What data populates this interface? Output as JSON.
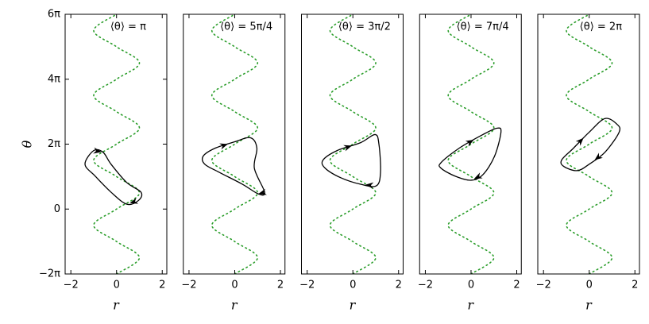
{
  "chart_data": [
    {
      "type": "line",
      "annotation": "⟨θ⟩ = π",
      "xlabel": "r",
      "ylabel": "θ",
      "xlim": [
        -2.25,
        2.2
      ],
      "xticks": [
        {
          "value": -2,
          "label": "−2"
        },
        0,
        2
      ],
      "ylim": [
        -6.283,
        18.85
      ],
      "yticks": [
        {
          "value": -6.283,
          "label": "−2π"
        },
        0,
        {
          "value": 6.283,
          "label": "2π"
        },
        {
          "value": 12.566,
          "label": "4π"
        },
        {
          "value": 18.85,
          "label": "6π"
        }
      ],
      "series": [
        {
          "color": "#2a9d2a",
          "style": "dotted",
          "x": [
            0,
            1,
            0,
            -1,
            0,
            1,
            0,
            -1,
            0,
            1,
            0,
            -1,
            0,
            1,
            0,
            -1,
            0
          ],
          "values": [
            -6.283,
            -4.712,
            -3.142,
            -1.571,
            0,
            1.571,
            3.142,
            4.712,
            6.283,
            7.854,
            9.425,
            10.996,
            12.566,
            14.137,
            15.708,
            17.279,
            18.85
          ]
        },
        {
          "color": "#000000",
          "style": "closed",
          "x": [
            -1.38,
            -1.0,
            -0.59,
            -0.24,
            0.45,
            1.07,
            0.97,
            0.45,
            -0.24,
            -0.93
          ],
          "values": [
            4.34,
            5.66,
            5.5,
            4.34,
            2.56,
            1.63,
            0.85,
            0.47,
            1.63,
            3.18
          ]
        }
      ]
    },
    {
      "type": "line",
      "annotation": "⟨θ⟩ = 5π/4",
      "xlabel": "r",
      "xlim": [
        -2.25,
        2.2
      ],
      "xticks": [
        {
          "value": -2,
          "label": "−2"
        },
        0,
        2
      ],
      "ylim": [
        -6.283,
        18.85
      ],
      "series": [
        {
          "color": "#2a9d2a",
          "style": "dotted",
          "x": [
            0,
            1,
            0,
            -1,
            0,
            1,
            0,
            -1,
            0,
            1,
            0,
            -1,
            0,
            1,
            0,
            -1,
            0
          ],
          "values": [
            -6.283,
            -4.712,
            -3.142,
            -1.571,
            0,
            1.571,
            3.142,
            4.712,
            6.283,
            7.854,
            9.425,
            10.996,
            12.566,
            14.137,
            15.708,
            17.279,
            18.85
          ]
        },
        {
          "color": "#000000",
          "style": "closed",
          "x": [
            -1.38,
            -0.86,
            0,
            0.69,
            0.97,
            0.86,
            1.31,
            1.03,
            0.34,
            -0.69,
            -1.31
          ],
          "values": [
            5.12,
            5.89,
            6.51,
            6.9,
            5.89,
            3.95,
            1.63,
            1.47,
            2.4,
            3.57,
            4.34
          ]
        }
      ]
    },
    {
      "type": "line",
      "annotation": "⟨θ⟩ = 3π/2",
      "xlabel": "r",
      "xlim": [
        -2.25,
        2.2
      ],
      "xticks": [
        {
          "value": -2,
          "label": "−2"
        },
        0,
        2
      ],
      "ylim": [
        -6.283,
        18.85
      ],
      "series": [
        {
          "color": "#2a9d2a",
          "style": "dotted",
          "x": [
            0,
            1,
            0,
            -1,
            0,
            1,
            0,
            -1,
            0,
            1,
            0,
            -1,
            0,
            1,
            0,
            -1,
            0
          ],
          "values": [
            -6.283,
            -4.712,
            -3.142,
            -1.571,
            0,
            1.571,
            3.142,
            4.712,
            6.283,
            7.854,
            9.425,
            10.996,
            12.566,
            14.137,
            15.708,
            17.279,
            18.85
          ]
        },
        {
          "color": "#000000",
          "style": "closed",
          "x": [
            -1.31,
            -0.69,
            0.34,
            0.97,
            1.14,
            1.21,
            1.03,
            0.34,
            -0.52,
            -1.21
          ],
          "values": [
            4.73,
            5.66,
            6.43,
            7.21,
            6.28,
            3.57,
            2.25,
            2.4,
            3.02,
            3.95
          ]
        }
      ]
    },
    {
      "type": "line",
      "annotation": "⟨θ⟩ = 7π/4",
      "xlabel": "r",
      "xlim": [
        -2.25,
        2.2
      ],
      "xticks": [
        {
          "value": -2,
          "label": "−2"
        },
        0,
        2
      ],
      "ylim": [
        -6.283,
        18.85
      ],
      "series": [
        {
          "color": "#2a9d2a",
          "style": "dotted",
          "x": [
            0,
            1,
            0,
            -1,
            0,
            1,
            0,
            -1,
            0,
            1,
            0,
            -1,
            0,
            1,
            0,
            -1,
            0
          ],
          "values": [
            -6.283,
            -4.712,
            -3.142,
            -1.571,
            0,
            1.571,
            3.142,
            4.712,
            6.283,
            7.854,
            9.425,
            10.996,
            12.566,
            14.137,
            15.708,
            17.279,
            18.85
          ]
        },
        {
          "color": "#000000",
          "style": "closed",
          "x": [
            -1.31,
            -0.52,
            0.52,
            1.14,
            1.31,
            1.03,
            0.52,
            0,
            -0.69,
            -1.31
          ],
          "values": [
            4.5,
            5.89,
            7.21,
            7.83,
            7.44,
            5.12,
            3.33,
            2.79,
            3.18,
            3.95
          ]
        }
      ]
    },
    {
      "type": "line",
      "annotation": "⟨θ⟩ = 2π",
      "xlabel": "r",
      "xlim": [
        -2.25,
        2.2
      ],
      "xticks": [
        {
          "value": -2,
          "label": "−2"
        },
        0,
        2
      ],
      "ylim": [
        -6.283,
        18.85
      ],
      "series": [
        {
          "color": "#2a9d2a",
          "style": "dotted",
          "x": [
            0,
            1,
            0,
            -1,
            0,
            1,
            0,
            -1,
            0,
            1,
            0,
            -1,
            0,
            1,
            0,
            -1,
            0
          ],
          "values": [
            -6.283,
            -4.712,
            -3.142,
            -1.571,
            0,
            1.571,
            3.142,
            4.712,
            6.283,
            7.854,
            9.425,
            10.996,
            12.566,
            14.137,
            15.708,
            17.279,
            18.85
          ]
        },
        {
          "color": "#000000",
          "style": "closed",
          "x": [
            -1.21,
            -0.69,
            0,
            0.69,
            1.21,
            1.31,
            0.69,
            0,
            -0.52,
            -1.1
          ],
          "values": [
            4.73,
            5.89,
            7.44,
            8.76,
            8.22,
            7.44,
            5.5,
            4.34,
            3.72,
            4.11
          ]
        }
      ]
    }
  ]
}
